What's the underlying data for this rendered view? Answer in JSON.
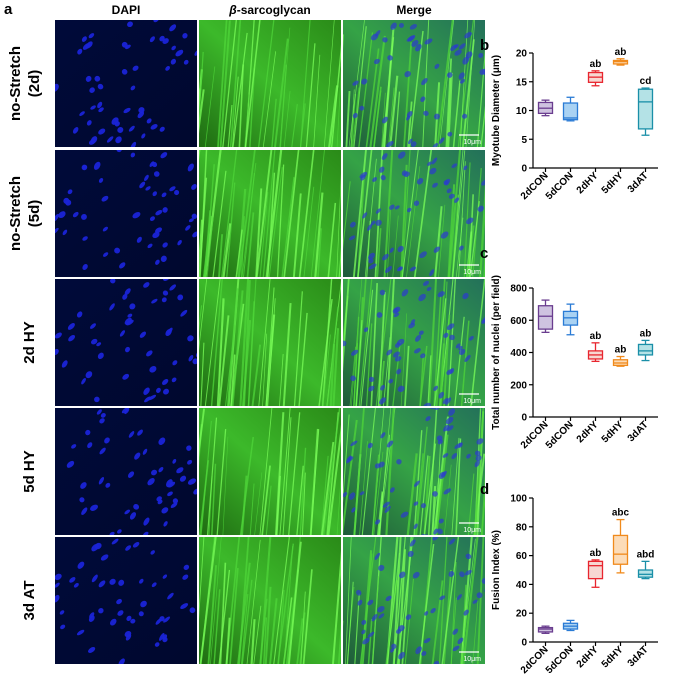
{
  "panel_a": {
    "letter": "a",
    "columns": [
      "DAPI",
      "β-sarcoglycan",
      "Merge"
    ],
    "column_prefix": "β",
    "column_rest": "-sarcoglycan",
    "rows": [
      {
        "line1": "no-Stretch",
        "line2": "(2d)"
      },
      {
        "line1": "no-Stretch",
        "line2": "(5d)"
      },
      {
        "line1": "2d HY",
        "line2": ""
      },
      {
        "line1": "5d HY",
        "line2": ""
      },
      {
        "line1": "3d AT",
        "line2": ""
      }
    ],
    "scale_bar": "10μm"
  },
  "colors": {
    "2dCON": "#6a3d8f",
    "5dCON": "#2a7bd5",
    "2dHY": "#e8262f",
    "5dHY": "#f08a1c",
    "3dAT": "#1a8fa8",
    "fill_2dCON": "#cfc3e0",
    "fill_5dCON": "#a9d2f3",
    "fill_2dHY": "#f7d7d2",
    "fill_5dHY": "#fcdcb8",
    "fill_3dAT": "#b4e2e6"
  },
  "chart_data": [
    {
      "panel": "b",
      "type": "box",
      "ylabel": "Myotube Diameter (μm)",
      "ylim": [
        0,
        20
      ],
      "yticks": [
        0,
        5,
        10,
        15,
        20
      ],
      "categories": [
        "2dCON",
        "5dCON",
        "2dHY",
        "5dHY",
        "3dAT"
      ],
      "boxes": [
        {
          "min": 9.1,
          "q1": 9.5,
          "median": 10.4,
          "q3": 11.4,
          "max": 11.8
        },
        {
          "min": 8.2,
          "q1": 8.4,
          "median": 8.7,
          "q3": 11.3,
          "max": 12.3
        },
        {
          "min": 14.3,
          "q1": 14.9,
          "median": 15.8,
          "q3": 16.6,
          "max": 16.9
        },
        {
          "min": 17.9,
          "q1": 18.1,
          "median": 18.5,
          "q3": 18.7,
          "max": 19.0
        },
        {
          "min": 5.7,
          "q1": 6.8,
          "median": 11.5,
          "q3": 13.7,
          "max": 13.9
        }
      ],
      "annotations": [
        "",
        "",
        "ab",
        "ab",
        "cd"
      ]
    },
    {
      "panel": "c",
      "type": "box",
      "ylabel": "Total number of nuclei (per field)",
      "ylim": [
        0,
        800
      ],
      "yticks": [
        0,
        200,
        400,
        600,
        800
      ],
      "categories": [
        "2dCON",
        "5dCON",
        "2dHY",
        "5dHY",
        "3dAT"
      ],
      "boxes": [
        {
          "min": 525,
          "q1": 545,
          "median": 625,
          "q3": 690,
          "max": 725
        },
        {
          "min": 510,
          "q1": 570,
          "median": 615,
          "q3": 655,
          "max": 700
        },
        {
          "min": 345,
          "q1": 360,
          "median": 385,
          "q3": 410,
          "max": 460
        },
        {
          "min": 315,
          "q1": 320,
          "median": 335,
          "q3": 355,
          "max": 375
        },
        {
          "min": 350,
          "q1": 385,
          "median": 410,
          "q3": 450,
          "max": 475
        }
      ],
      "annotations": [
        "",
        "",
        "ab",
        "ab",
        "ab"
      ]
    },
    {
      "panel": "d",
      "type": "box",
      "ylabel": "Fusion Index (%)",
      "ylim": [
        0,
        100
      ],
      "yticks": [
        0,
        20,
        40,
        60,
        80,
        100
      ],
      "categories": [
        "2dCON",
        "5dCON",
        "2dHY",
        "5dHY",
        "3dAT"
      ],
      "boxes": [
        {
          "min": 6,
          "q1": 7,
          "median": 9,
          "q3": 10,
          "max": 11
        },
        {
          "min": 8,
          "q1": 9,
          "median": 11,
          "q3": 13,
          "max": 15
        },
        {
          "min": 38,
          "q1": 44,
          "median": 53,
          "q3": 56,
          "max": 57
        },
        {
          "min": 48,
          "q1": 54,
          "median": 61,
          "q3": 74,
          "max": 85
        },
        {
          "min": 44,
          "q1": 45,
          "median": 47,
          "q3": 50,
          "max": 56
        }
      ],
      "annotations": [
        "",
        "",
        "ab",
        "abc",
        "abd"
      ]
    }
  ]
}
